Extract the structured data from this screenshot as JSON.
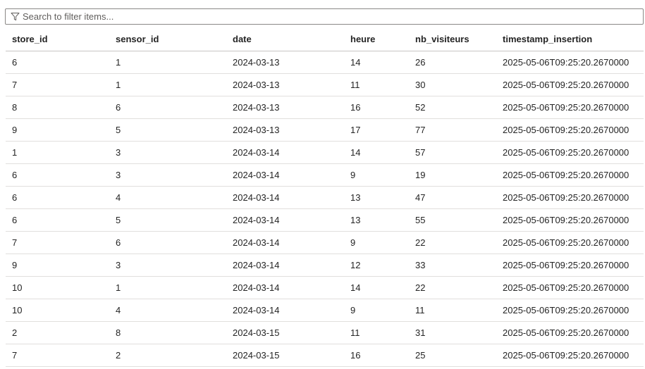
{
  "filter": {
    "placeholder": "Search to filter items...",
    "icon": "funnel-icon"
  },
  "table": {
    "columns": [
      "store_id",
      "sensor_id",
      "date",
      "heure",
      "nb_visiteurs",
      "timestamp_insertion"
    ],
    "rows": [
      [
        "6",
        "1",
        "2024-03-13",
        "14",
        "26",
        "2025-05-06T09:25:20.2670000"
      ],
      [
        "7",
        "1",
        "2024-03-13",
        "11",
        "30",
        "2025-05-06T09:25:20.2670000"
      ],
      [
        "8",
        "6",
        "2024-03-13",
        "16",
        "52",
        "2025-05-06T09:25:20.2670000"
      ],
      [
        "9",
        "5",
        "2024-03-13",
        "17",
        "77",
        "2025-05-06T09:25:20.2670000"
      ],
      [
        "1",
        "3",
        "2024-03-14",
        "14",
        "57",
        "2025-05-06T09:25:20.2670000"
      ],
      [
        "6",
        "3",
        "2024-03-14",
        "9",
        "19",
        "2025-05-06T09:25:20.2670000"
      ],
      [
        "6",
        "4",
        "2024-03-14",
        "13",
        "47",
        "2025-05-06T09:25:20.2670000"
      ],
      [
        "6",
        "5",
        "2024-03-14",
        "13",
        "55",
        "2025-05-06T09:25:20.2670000"
      ],
      [
        "7",
        "6",
        "2024-03-14",
        "9",
        "22",
        "2025-05-06T09:25:20.2670000"
      ],
      [
        "9",
        "3",
        "2024-03-14",
        "12",
        "33",
        "2025-05-06T09:25:20.2670000"
      ],
      [
        "10",
        "1",
        "2024-03-14",
        "14",
        "22",
        "2025-05-06T09:25:20.2670000"
      ],
      [
        "10",
        "4",
        "2024-03-14",
        "9",
        "11",
        "2025-05-06T09:25:20.2670000"
      ],
      [
        "2",
        "8",
        "2024-03-15",
        "11",
        "31",
        "2025-05-06T09:25:20.2670000"
      ],
      [
        "7",
        "2",
        "2024-03-15",
        "16",
        "25",
        "2025-05-06T09:25:20.2670000"
      ]
    ]
  }
}
